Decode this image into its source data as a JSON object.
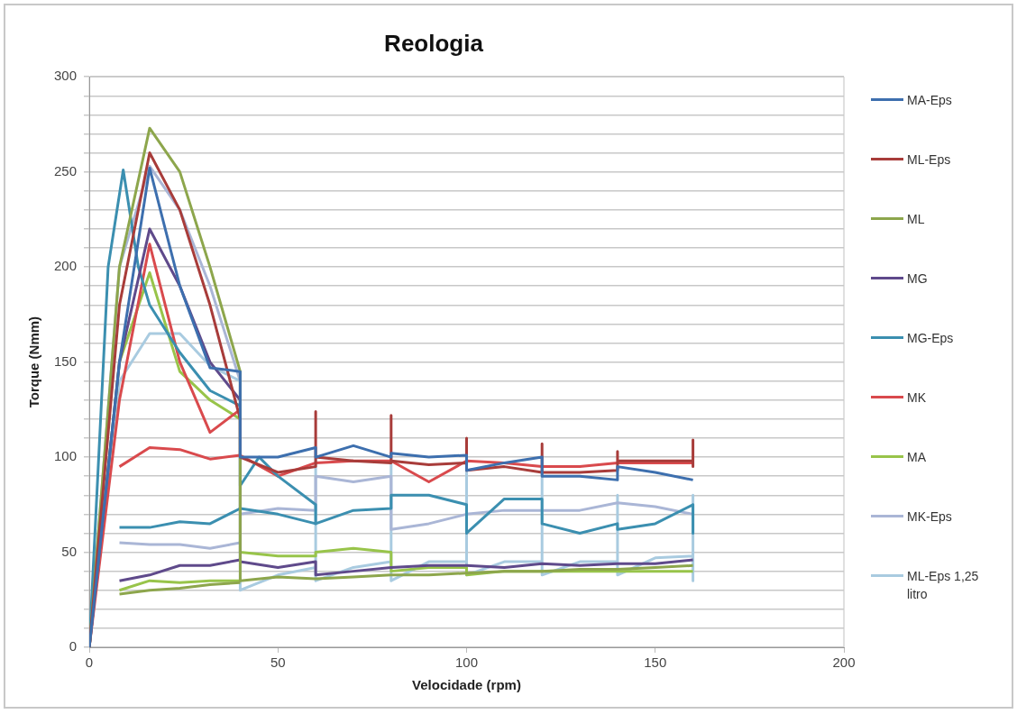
{
  "chart_data": {
    "type": "line",
    "title": "Reologia",
    "xlabel": "Velocidade (rpm)",
    "ylabel": "Torque (Nmm)",
    "xlim": [
      0,
      200
    ],
    "xticks": [
      0,
      50,
      100,
      150,
      200
    ],
    "ylim": [
      0,
      300
    ],
    "yticks": [
      0,
      {
        "value": 10,
        "label": null
      },
      {
        "value": 20,
        "label": null
      },
      {
        "value": 30,
        "label": null
      },
      {
        "value": 40,
        "label": null
      },
      50,
      {
        "value": 60,
        "label": null
      },
      {
        "value": 70,
        "label": null
      },
      {
        "value": 80,
        "label": null
      },
      {
        "value": 90,
        "label": null
      },
      100,
      {
        "value": 110,
        "label": null
      },
      {
        "value": 120,
        "label": null
      },
      {
        "value": 130,
        "label": null
      },
      {
        "value": 140,
        "label": null
      },
      150,
      {
        "value": 160,
        "label": null
      },
      {
        "value": 170,
        "label": null
      },
      {
        "value": 180,
        "label": null
      },
      {
        "value": 190,
        "label": null
      },
      200,
      {
        "value": 210,
        "label": null
      },
      {
        "value": 220,
        "label": null
      },
      {
        "value": 230,
        "label": null
      },
      {
        "value": 240,
        "label": null
      },
      250,
      {
        "value": 260,
        "label": null
      },
      {
        "value": 270,
        "label": null
      },
      {
        "value": 280,
        "label": null
      },
      {
        "value": 290,
        "label": null
      },
      300
    ],
    "grid": "y",
    "legend": "right",
    "marker": "none",
    "line_style": "solid",
    "series": [
      {
        "name": "MA-Eps",
        "color": "#3d6fae",
        "x": [
          0,
          8,
          16,
          24,
          32,
          40,
          40,
          50,
          60,
          60,
          70,
          80,
          80,
          90,
          100,
          100,
          110,
          120,
          120,
          130,
          140,
          140,
          150,
          160
        ],
        "values": [
          0,
          150,
          252,
          190,
          147,
          145,
          100,
          100,
          105,
          100,
          106,
          100,
          102,
          100,
          101,
          93,
          97,
          100,
          90,
          90,
          88,
          95,
          92,
          88
        ]
      },
      {
        "name": "ML-Eps",
        "color": "#a83c3a",
        "x": [
          0,
          8,
          16,
          24,
          32,
          40,
          40,
          50,
          60,
          60,
          60,
          70,
          80,
          80,
          80,
          90,
          100,
          100,
          100,
          110,
          120,
          120,
          120,
          130,
          140,
          140,
          140,
          150,
          160,
          160,
          160
        ],
        "values": [
          0,
          180,
          260,
          230,
          180,
          120,
          100,
          92,
          95,
          124,
          100,
          98,
          97,
          122,
          98,
          96,
          97,
          110,
          93,
          95,
          92,
          107,
          92,
          92,
          93,
          103,
          98,
          98,
          98,
          109,
          95
        ]
      },
      {
        "name": "ML",
        "color": "#8da64c",
        "x": [
          0,
          8,
          16,
          24,
          32,
          40,
          40,
          50,
          60,
          70,
          80,
          90,
          100,
          110,
          120,
          130,
          140,
          150,
          160
        ],
        "values": [
          0,
          200,
          273,
          250,
          200,
          145,
          35,
          37,
          36,
          37,
          38,
          38,
          39,
          40,
          40,
          41,
          41,
          42,
          43
        ]
      },
      {
        "color": "#8da64c",
        "x": [
          8,
          16,
          24,
          32,
          40
        ],
        "values": [
          28,
          30,
          31,
          33,
          34
        ]
      },
      {
        "name": "MG",
        "color": "#5f4a8b",
        "x": [
          0,
          8,
          16,
          24,
          32,
          40,
          40,
          50,
          60,
          60,
          70,
          80,
          90,
          100,
          110,
          120,
          130,
          140,
          150,
          160
        ],
        "values": [
          0,
          150,
          220,
          190,
          150,
          130,
          45,
          42,
          45,
          38,
          40,
          42,
          43,
          43,
          42,
          44,
          43,
          44,
          44,
          46
        ]
      },
      {
        "color": "#5f4a8b",
        "x": [
          8,
          16,
          24,
          32,
          40
        ],
        "values": [
          35,
          38,
          43,
          43,
          46
        ]
      },
      {
        "name": "MG-Eps",
        "color": "#3b8fb0",
        "x": [
          0,
          5,
          9,
          13,
          16,
          24,
          32,
          40,
          40,
          45,
          50,
          60,
          60,
          70,
          80,
          80,
          90,
          100,
          100,
          110,
          120,
          120,
          130,
          140,
          140,
          150,
          160,
          160
        ],
        "values": [
          0,
          200,
          251,
          200,
          180,
          155,
          135,
          127,
          85,
          100,
          90,
          75,
          65,
          72,
          73,
          80,
          80,
          75,
          60,
          78,
          78,
          65,
          60,
          65,
          62,
          65,
          75,
          60
        ]
      },
      {
        "color": "#3b8fb0",
        "x": [
          8,
          16,
          24,
          32,
          40,
          50,
          60
        ],
        "values": [
          63,
          63,
          66,
          65,
          73,
          70,
          65
        ]
      },
      {
        "name": "MK",
        "color": "#d94a4d",
        "x": [
          0,
          8,
          16,
          24,
          32,
          40,
          40
        ],
        "values": [
          0,
          130,
          212,
          150,
          113,
          125,
          100
        ]
      },
      {
        "color": "#d94a4d",
        "x": [
          8,
          16,
          24,
          32,
          40,
          50,
          60,
          70,
          80,
          90,
          100,
          110,
          120,
          130,
          140,
          150,
          160
        ],
        "values": [
          95,
          105,
          104,
          99,
          101,
          90,
          97,
          98,
          98,
          87,
          98,
          97,
          95,
          95,
          97,
          97,
          97
        ]
      },
      {
        "name": "MA",
        "color": "#98c44a",
        "x": [
          0,
          8,
          16,
          24,
          32,
          40,
          40,
          50,
          60,
          60,
          70,
          80,
          80,
          90,
          100,
          100,
          110,
          120,
          130,
          140,
          150,
          160
        ],
        "values": [
          0,
          150,
          197,
          145,
          130,
          120,
          50,
          48,
          48,
          50,
          52,
          50,
          40,
          42,
          42,
          38,
          40,
          40,
          40,
          40,
          40,
          40
        ]
      },
      {
        "color": "#98c44a",
        "x": [
          8,
          16,
          24,
          32,
          40
        ],
        "values": [
          30,
          35,
          34,
          35,
          35
        ]
      },
      {
        "name": "MK-Eps",
        "color": "#aab6d6",
        "x": [
          0,
          8,
          16,
          24,
          32,
          40,
          40,
          50,
          60,
          60,
          70,
          80,
          80,
          90,
          100,
          110,
          120,
          130,
          140,
          150,
          160
        ],
        "values": [
          0,
          200,
          253,
          230,
          190,
          140,
          70,
          73,
          72,
          90,
          87,
          90,
          62,
          65,
          70,
          72,
          72,
          72,
          76,
          74,
          70
        ]
      },
      {
        "color": "#aab6d6",
        "x": [
          8,
          16,
          24,
          32,
          40
        ],
        "values": [
          55,
          54,
          54,
          52,
          55
        ]
      },
      {
        "name": "ML-Eps 1,25 litro",
        "color": "#a9cbe0",
        "x": [
          0,
          8,
          16,
          24,
          32,
          40,
          40,
          50,
          60,
          60,
          60,
          70,
          80,
          80,
          80,
          90,
          100,
          100,
          100,
          110,
          120,
          120,
          120,
          130,
          140,
          140,
          140,
          150,
          160,
          160,
          160
        ],
        "values": [
          0,
          140,
          165,
          165,
          148,
          140,
          30,
          38,
          42,
          100,
          35,
          42,
          45,
          100,
          35,
          45,
          45,
          95,
          38,
          45,
          45,
          92,
          38,
          45,
          45,
          80,
          38,
          47,
          48,
          80,
          35
        ]
      }
    ]
  }
}
